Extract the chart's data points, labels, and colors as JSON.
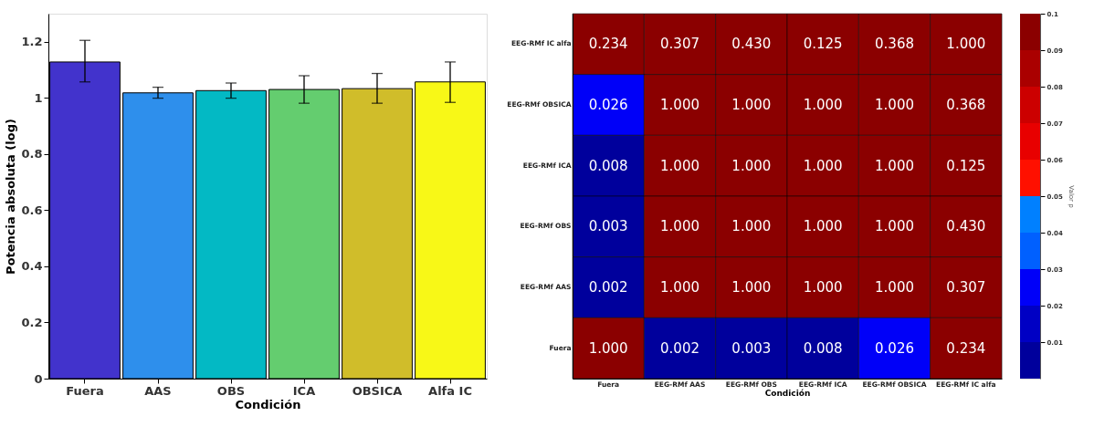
{
  "chart_data": [
    {
      "type": "bar",
      "xlabel": "Condición",
      "ylabel": "Potencia absoluta (log)",
      "categories": [
        "Fuera",
        "AAS",
        "OBS",
        "ICA",
        "OBSICA",
        "Alfa IC"
      ],
      "values": [
        1.128,
        1.018,
        1.026,
        1.03,
        1.033,
        1.057
      ],
      "colors": [
        "#4233cc",
        "#2e8fec",
        "#03b9c4",
        "#64cd6f",
        "#d0bd2a",
        "#f8f817"
      ],
      "errors": [
        [
          1.057,
          1.205
        ],
        [
          0.999,
          1.038
        ],
        [
          0.999,
          1.053
        ],
        [
          0.981,
          1.079
        ],
        [
          0.981,
          1.087
        ],
        [
          0.984,
          1.128
        ]
      ],
      "ylim": [
        0,
        1.3
      ],
      "yticks": [
        0,
        0.2,
        0.4,
        0.6,
        0.8,
        1,
        1.2
      ],
      "grid": false
    },
    {
      "type": "heatmap",
      "xlabel": "Condición",
      "clabel": "Valor p",
      "categories": [
        "Fuera",
        "EEG-RMf AAS",
        "EEG-RMf OBS",
        "EEG-RMf ICA",
        "EEG-RMf OBSICA",
        "EEG-RMf IC alfa"
      ],
      "y_categories": [
        "EEG-RMf IC alfa",
        "EEG-RMf OBSICA",
        "EEG-RMf ICA",
        "EEG-RMf OBS",
        "EEG-RMf AAS",
        "Fuera"
      ],
      "cells": [
        [
          0.234,
          0.307,
          0.43,
          0.125,
          0.368,
          1.0
        ],
        [
          0.026,
          1.0,
          1.0,
          1.0,
          1.0,
          0.368
        ],
        [
          0.008,
          1.0,
          1.0,
          1.0,
          1.0,
          0.125
        ],
        [
          0.003,
          1.0,
          1.0,
          1.0,
          1.0,
          0.43
        ],
        [
          0.002,
          1.0,
          1.0,
          1.0,
          1.0,
          0.307
        ],
        [
          1.0,
          0.002,
          0.003,
          0.008,
          0.026,
          0.234
        ]
      ],
      "cell_labels": [
        [
          "0.234",
          "0.307",
          "0.430",
          "0.125",
          "0.368",
          "1.000"
        ],
        [
          "0.026",
          "1.000",
          "1.000",
          "1.000",
          "1.000",
          "0.368"
        ],
        [
          "0.008",
          "1.000",
          "1.000",
          "1.000",
          "1.000",
          "0.125"
        ],
        [
          "0.003",
          "1.000",
          "1.000",
          "1.000",
          "1.000",
          "0.430"
        ],
        [
          "0.002",
          "1.000",
          "1.000",
          "1.000",
          "1.000",
          "0.307"
        ],
        [
          "1.000",
          "0.002",
          "0.003",
          "0.008",
          "0.026",
          "0.234"
        ]
      ],
      "colors": [
        "#00009c",
        "#0000c4",
        "#0000f8",
        "#0060ff",
        "#0080ff",
        "#ff1000",
        "#e80000",
        "#cc0000",
        "#aa0000",
        "#8b0000"
      ],
      "clim": [
        0,
        0.1
      ],
      "cticks": [
        0.01,
        0.02,
        0.03,
        0.04,
        0.05,
        0.06,
        0.07,
        0.08,
        0.09,
        0.1
      ]
    }
  ]
}
